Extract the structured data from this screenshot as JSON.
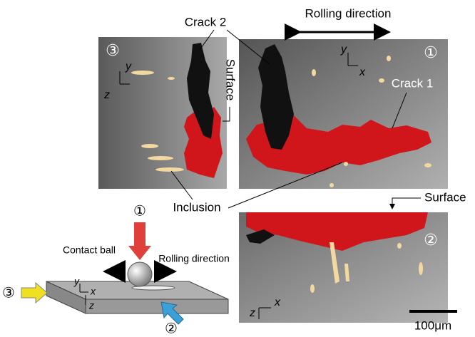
{
  "figure": {
    "annotations": {
      "crack_2": "Crack 2",
      "rolling_direction": "Rolling direction",
      "crack_1": "Crack 1",
      "surface_left": "Surface",
      "surface_right": "Surface",
      "inclusion": "Inclusion"
    },
    "panel_1": {
      "marker": "①",
      "axis_y": "y",
      "axis_x": "x"
    },
    "panel_2": {
      "marker": "②",
      "axis_z": "z",
      "axis_x": "x"
    },
    "panel_3": {
      "marker": "③",
      "axis_y": "y",
      "axis_z": "z"
    },
    "schematic": {
      "view_1": "①",
      "view_2": "②",
      "view_3": "③",
      "contact_ball": "Contact ball",
      "rolling_direction": "Rolling direction",
      "axis_y": "y",
      "axis_x": "x",
      "axis_z": "z"
    },
    "scale_bar": "100μm"
  }
}
